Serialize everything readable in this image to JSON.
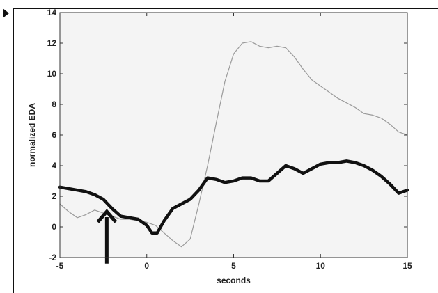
{
  "chart_data": {
    "type": "line",
    "xlabel": "seconds",
    "ylabel": "normalized EDA",
    "xlim": [
      -5,
      15
    ],
    "ylim": [
      -2,
      14
    ],
    "xticks": [
      -5,
      0,
      5,
      10,
      15
    ],
    "yticks": [
      -2,
      0,
      2,
      4,
      6,
      8,
      10,
      12,
      14
    ],
    "grid": false,
    "annotations": [
      {
        "kind": "arrow-up",
        "x": -2.3,
        "y_tip": 1.0,
        "y_base": -2.4
      }
    ],
    "series": [
      {
        "style": "thin-gray",
        "color": "#9a9a9a",
        "x": [
          -5,
          -4.5,
          -4,
          -3.5,
          -3,
          -2.5,
          -2,
          -1.5,
          -1,
          -0.5,
          0,
          0.5,
          1,
          1.5,
          2,
          2.5,
          3,
          3.5,
          4,
          4.5,
          5,
          5.5,
          6,
          6.5,
          7,
          7.5,
          8,
          8.5,
          9,
          9.5,
          10,
          10.5,
          11,
          11.5,
          12,
          12.5,
          13,
          13.5,
          14,
          14.5,
          15
        ],
        "y": [
          1.5,
          1.0,
          0.6,
          0.8,
          1.1,
          0.9,
          0.7,
          0.5,
          0.5,
          0.4,
          0.3,
          0.1,
          -0.4,
          -0.9,
          -1.3,
          -0.8,
          1.5,
          4.0,
          6.8,
          9.5,
          11.3,
          12.0,
          12.1,
          11.8,
          11.7,
          11.8,
          11.7,
          11.1,
          10.3,
          9.6,
          9.2,
          8.8,
          8.4,
          8.1,
          7.8,
          7.4,
          7.3,
          7.1,
          6.7,
          6.2,
          6.0
        ]
      },
      {
        "style": "thick-black",
        "color": "#111111",
        "x": [
          -5,
          -4.5,
          -4,
          -3.5,
          -3,
          -2.5,
          -2,
          -1.5,
          -1,
          -0.5,
          0,
          0.3,
          0.6,
          1,
          1.5,
          2,
          2.5,
          3,
          3.5,
          4,
          4.5,
          5,
          5.5,
          6,
          6.5,
          7,
          7.5,
          8,
          8.5,
          9,
          9.5,
          10,
          10.5,
          11,
          11.5,
          12,
          12.5,
          13,
          13.5,
          14,
          14.5,
          15
        ],
        "y": [
          2.6,
          2.5,
          2.4,
          2.3,
          2.1,
          1.8,
          1.2,
          0.7,
          0.6,
          0.5,
          0.1,
          -0.4,
          -0.4,
          0.4,
          1.2,
          1.5,
          1.8,
          2.4,
          3.2,
          3.1,
          2.9,
          3.0,
          3.2,
          3.2,
          3.0,
          3.0,
          3.5,
          4.0,
          3.8,
          3.5,
          3.8,
          4.1,
          4.2,
          4.2,
          4.3,
          4.2,
          4.0,
          3.7,
          3.3,
          2.8,
          2.2,
          2.4
        ]
      }
    ]
  }
}
